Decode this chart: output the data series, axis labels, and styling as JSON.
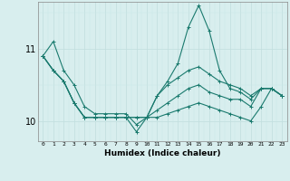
{
  "xlabel": "Humidex (Indice chaleur)",
  "ylabel": "",
  "bg_color": "#d8eeee",
  "line_color": "#1a7a6e",
  "grid_color_major": "#c0dede",
  "grid_color_minor": "#c8e8e8",
  "x_ticks": [
    0,
    1,
    2,
    3,
    4,
    5,
    6,
    7,
    8,
    9,
    10,
    11,
    12,
    13,
    14,
    15,
    16,
    17,
    18,
    19,
    20,
    21,
    22,
    23
  ],
  "y_ticks": [
    10,
    11
  ],
  "ylim": [
    9.72,
    11.65
  ],
  "xlim": [
    -0.5,
    23.5
  ],
  "series": [
    [
      10.9,
      11.1,
      10.7,
      10.5,
      10.2,
      10.1,
      10.1,
      10.1,
      10.1,
      9.95,
      10.05,
      10.35,
      10.55,
      10.8,
      11.3,
      11.6,
      11.25,
      10.7,
      10.45,
      10.4,
      10.3,
      10.45,
      10.45,
      10.35
    ],
    [
      10.9,
      10.7,
      10.55,
      10.25,
      10.05,
      10.05,
      10.05,
      10.05,
      10.05,
      10.05,
      10.05,
      10.35,
      10.5,
      10.6,
      10.7,
      10.75,
      10.65,
      10.55,
      10.5,
      10.45,
      10.35,
      10.45,
      10.45,
      10.35
    ],
    [
      10.9,
      10.7,
      10.55,
      10.25,
      10.05,
      10.05,
      10.05,
      10.05,
      10.05,
      10.05,
      10.05,
      10.15,
      10.25,
      10.35,
      10.45,
      10.5,
      10.4,
      10.35,
      10.3,
      10.3,
      10.2,
      10.45,
      10.45,
      10.35
    ],
    [
      10.9,
      10.7,
      10.55,
      10.25,
      10.05,
      10.05,
      10.05,
      10.05,
      10.05,
      9.85,
      10.05,
      10.05,
      10.1,
      10.15,
      10.2,
      10.25,
      10.2,
      10.15,
      10.1,
      10.05,
      10.0,
      10.2,
      10.45,
      10.35
    ]
  ]
}
